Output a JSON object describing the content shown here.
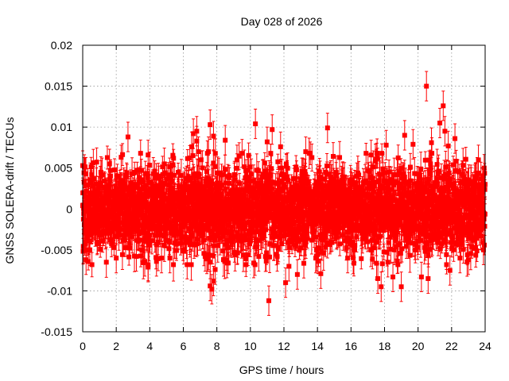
{
  "chart_data": {
    "type": "scatter",
    "title": "Day 028 of 2026",
    "xlabel": "GPS time / hours",
    "ylabel": "GNSS SOLERA-drift / TECUs",
    "xlim": [
      0,
      24
    ],
    "ylim": [
      -0.015,
      0.02
    ],
    "grid": true,
    "x_ticks": [
      0,
      2,
      4,
      6,
      8,
      10,
      12,
      14,
      16,
      18,
      20,
      22,
      24
    ],
    "x_tick_labels": [
      "0",
      "2",
      "4",
      "6",
      "8",
      "10",
      "12",
      "14",
      "16",
      "18",
      "20",
      "22",
      "24"
    ],
    "y_ticks": [
      -0.015,
      -0.01,
      -0.005,
      0,
      0.005,
      0.01,
      0.015,
      0.02
    ],
    "y_tick_labels": [
      "-0.015",
      "-0.01",
      "-0.005",
      "0",
      "0.005",
      "0.01",
      "0.015",
      "0.02"
    ],
    "series": [
      {
        "name": "SOLERA drift",
        "color": "#ff0000",
        "marker": "square",
        "error_bars": true,
        "bulk_points": 2880,
        "bulk_sigma": 0.0025,
        "typical_error": 0.0015,
        "notable_points": [
          {
            "x": 0.0,
            "y": 0.0053
          },
          {
            "x": 0.2,
            "y": -0.0062
          },
          {
            "x": 1.6,
            "y": 0.0055
          },
          {
            "x": 2.0,
            "y": -0.006
          },
          {
            "x": 2.7,
            "y": 0.0088
          },
          {
            "x": 3.2,
            "y": -0.0058
          },
          {
            "x": 3.7,
            "y": -0.0064
          },
          {
            "x": 3.9,
            "y": -0.0071
          },
          {
            "x": 3.9,
            "y": 0.0066
          },
          {
            "x": 4.4,
            "y": -0.0064
          },
          {
            "x": 4.7,
            "y": -0.006
          },
          {
            "x": 5.2,
            "y": -0.006
          },
          {
            "x": 6.5,
            "y": 0.0076
          },
          {
            "x": 6.6,
            "y": 0.0092
          },
          {
            "x": 6.8,
            "y": 0.0095
          },
          {
            "x": 6.8,
            "y": 0.0083
          },
          {
            "x": 6.9,
            "y": 0.007
          },
          {
            "x": 7.3,
            "y": -0.0058
          },
          {
            "x": 7.4,
            "y": -0.0061
          },
          {
            "x": 7.5,
            "y": 0.007
          },
          {
            "x": 7.6,
            "y": 0.0103
          },
          {
            "x": 7.6,
            "y": -0.0094
          },
          {
            "x": 7.7,
            "y": -0.0098
          },
          {
            "x": 7.8,
            "y": 0.0089
          },
          {
            "x": 7.8,
            "y": -0.0088
          },
          {
            "x": 7.9,
            "y": -0.0074
          },
          {
            "x": 8.5,
            "y": 0.0084
          },
          {
            "x": 8.6,
            "y": -0.0066
          },
          {
            "x": 9.2,
            "y": 0.006
          },
          {
            "x": 10.2,
            "y": -0.0066
          },
          {
            "x": 10.3,
            "y": 0.0104
          },
          {
            "x": 10.5,
            "y": -0.0058
          },
          {
            "x": 11.0,
            "y": 0.0082
          },
          {
            "x": 11.1,
            "y": -0.0112
          },
          {
            "x": 11.3,
            "y": 0.0097
          },
          {
            "x": 11.6,
            "y": -0.0058
          },
          {
            "x": 11.8,
            "y": 0.0076
          },
          {
            "x": 12.1,
            "y": -0.009
          },
          {
            "x": 12.3,
            "y": -0.007
          },
          {
            "x": 12.8,
            "y": -0.008
          },
          {
            "x": 13.3,
            "y": 0.007
          },
          {
            "x": 13.9,
            "y": -0.006
          },
          {
            "x": 14.2,
            "y": -0.0079
          },
          {
            "x": 14.6,
            "y": 0.0099
          },
          {
            "x": 15.8,
            "y": -0.006
          },
          {
            "x": 17.2,
            "y": 0.0066
          },
          {
            "x": 17.6,
            "y": -0.0085
          },
          {
            "x": 17.8,
            "y": -0.0095
          },
          {
            "x": 18.1,
            "y": 0.0078
          },
          {
            "x": 18.2,
            "y": -0.0065
          },
          {
            "x": 18.5,
            "y": -0.0083
          },
          {
            "x": 19.0,
            "y": -0.0095
          },
          {
            "x": 19.2,
            "y": 0.009
          },
          {
            "x": 19.7,
            "y": 0.0079
          },
          {
            "x": 20.2,
            "y": -0.0083
          },
          {
            "x": 20.5,
            "y": 0.015
          },
          {
            "x": 20.6,
            "y": -0.0085
          },
          {
            "x": 20.8,
            "y": 0.0081
          },
          {
            "x": 21.3,
            "y": 0.0105
          },
          {
            "x": 21.5,
            "y": 0.0126
          },
          {
            "x": 21.6,
            "y": 0.0095
          },
          {
            "x": 21.8,
            "y": 0.0077
          },
          {
            "x": 21.9,
            "y": -0.0075
          },
          {
            "x": 22.2,
            "y": 0.0086
          },
          {
            "x": 22.5,
            "y": -0.006
          },
          {
            "x": 23.0,
            "y": -0.0062
          },
          {
            "x": 23.6,
            "y": 0.006
          },
          {
            "x": 23.9,
            "y": -0.005
          },
          {
            "x": 24.0,
            "y": 0.003
          }
        ]
      }
    ]
  }
}
